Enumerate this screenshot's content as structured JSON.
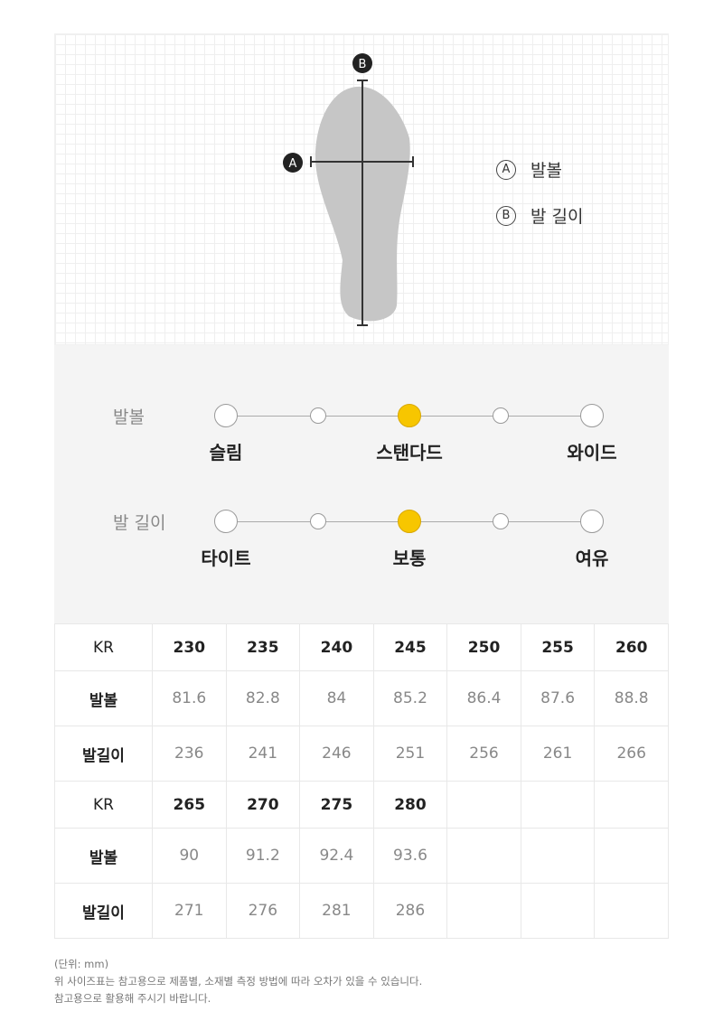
{
  "diagram": {
    "marker_a": "A",
    "marker_b": "B",
    "legend": [
      {
        "mark": "A",
        "label": "발볼"
      },
      {
        "mark": "B",
        "label": "발 길이"
      }
    ]
  },
  "fit": {
    "rows": [
      {
        "label": "발볼",
        "options": [
          "슬림",
          "스탠다드",
          "와이드"
        ],
        "selected_index": 2
      },
      {
        "label": "발 길이",
        "options": [
          "타이트",
          "보통",
          "여유"
        ],
        "selected_index": 2
      }
    ],
    "accent": "#f7c600"
  },
  "table": {
    "blocks": [
      {
        "header": "KR",
        "sizes": [
          "230",
          "235",
          "240",
          "245",
          "250",
          "255",
          "260"
        ],
        "rows": [
          {
            "label": "발볼",
            "values": [
              "81.6",
              "82.8",
              "84",
              "85.2",
              "86.4",
              "87.6",
              "88.8"
            ]
          },
          {
            "label": "발길이",
            "values": [
              "236",
              "241",
              "246",
              "251",
              "256",
              "261",
              "266"
            ]
          }
        ]
      },
      {
        "header": "KR",
        "sizes": [
          "265",
          "270",
          "275",
          "280",
          "",
          "",
          ""
        ],
        "rows": [
          {
            "label": "발볼",
            "values": [
              "90",
              "91.2",
              "92.4",
              "93.6",
              "",
              "",
              ""
            ]
          },
          {
            "label": "발길이",
            "values": [
              "271",
              "276",
              "281",
              "286",
              "",
              "",
              ""
            ]
          }
        ]
      }
    ]
  },
  "notes": [
    "(단위: mm)",
    "위 사이즈표는 참고용으로 제품별, 소재별 측정 방법에 따라 오차가 있을 수 있습니다.",
    "참고용으로 활용해 주시기 바랍니다."
  ]
}
